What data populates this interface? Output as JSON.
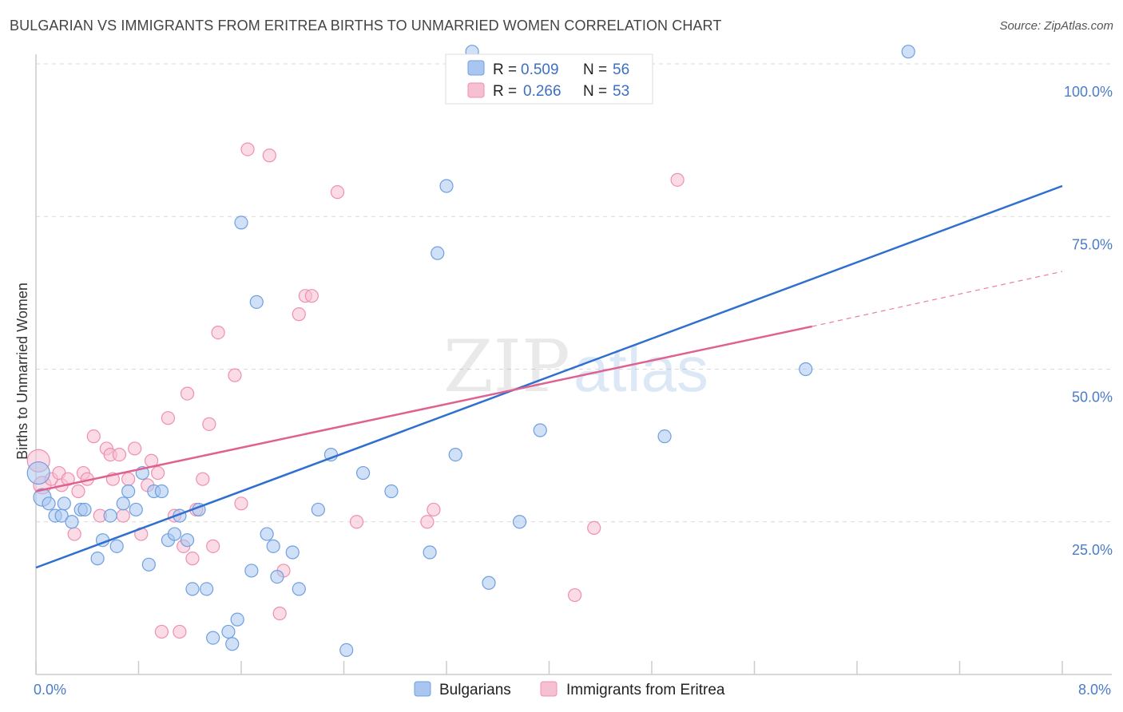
{
  "title": "BULGARIAN VS IMMIGRANTS FROM ERITREA BIRTHS TO UNMARRIED WOMEN CORRELATION CHART",
  "source": "Source: ZipAtlas.com",
  "watermark": {
    "zip": "ZIP",
    "atlas": "atlas"
  },
  "chart_data": {
    "type": "scatter",
    "title": "BULGARIAN VS IMMIGRANTS FROM ERITREA BIRTHS TO UNMARRIED WOMEN CORRELATION CHART",
    "xlabel": "",
    "ylabel": "Births to Unmarried Women",
    "xlim": [
      0,
      8
    ],
    "ylim": [
      0,
      100
    ],
    "x_tick_labels": {
      "left": "0.0%",
      "right": "8.0%"
    },
    "y_ticks": [
      {
        "value": 25,
        "label": "25.0%"
      },
      {
        "value": 50,
        "label": "50.0%"
      },
      {
        "value": 75,
        "label": "75.0%"
      },
      {
        "value": 100,
        "label": "100.0%"
      }
    ],
    "legend": {
      "entries": [
        {
          "r_label": "R =",
          "r_value": "0.509",
          "n_label": "N =",
          "n_value": "56"
        },
        {
          "r_label": "R =",
          "r_value": "0.266",
          "n_label": "N =",
          "n_value": "53"
        }
      ]
    },
    "series": [
      {
        "name": "Bulgarians",
        "color": "#6f9fe0",
        "fill": "#a9c6f0",
        "trend": {
          "x0": 0,
          "y0": 17.5,
          "x1": 8,
          "y1": 80
        },
        "points": [
          [
            0.02,
            33
          ],
          [
            0.05,
            29
          ],
          [
            0.1,
            28
          ],
          [
            0.15,
            26
          ],
          [
            0.2,
            26
          ],
          [
            0.22,
            28
          ],
          [
            0.28,
            25
          ],
          [
            0.35,
            27
          ],
          [
            0.38,
            27
          ],
          [
            0.48,
            19
          ],
          [
            0.52,
            22
          ],
          [
            0.58,
            26
          ],
          [
            0.63,
            21
          ],
          [
            0.68,
            28
          ],
          [
            0.72,
            30
          ],
          [
            0.78,
            27
          ],
          [
            0.83,
            33
          ],
          [
            0.88,
            18
          ],
          [
            0.92,
            30
          ],
          [
            0.98,
            30
          ],
          [
            1.03,
            22
          ],
          [
            1.08,
            23
          ],
          [
            1.12,
            26
          ],
          [
            1.18,
            22
          ],
          [
            1.22,
            14
          ],
          [
            1.27,
            27
          ],
          [
            1.33,
            14
          ],
          [
            1.38,
            6
          ],
          [
            1.5,
            7
          ],
          [
            1.53,
            5
          ],
          [
            1.57,
            9
          ],
          [
            1.6,
            74
          ],
          [
            1.68,
            17
          ],
          [
            1.72,
            61
          ],
          [
            1.8,
            23
          ],
          [
            1.85,
            21
          ],
          [
            1.88,
            16
          ],
          [
            2.0,
            20
          ],
          [
            2.05,
            14
          ],
          [
            2.2,
            27
          ],
          [
            2.3,
            36
          ],
          [
            2.42,
            4
          ],
          [
            2.55,
            33
          ],
          [
            2.77,
            30
          ],
          [
            3.07,
            20
          ],
          [
            3.13,
            69
          ],
          [
            3.2,
            80
          ],
          [
            3.27,
            36
          ],
          [
            3.4,
            102
          ],
          [
            3.53,
            15
          ],
          [
            3.77,
            25
          ],
          [
            3.93,
            40
          ],
          [
            4.9,
            39
          ],
          [
            6.0,
            50
          ],
          [
            6.8,
            102
          ]
        ]
      },
      {
        "name": "Immigrants from Eritrea",
        "color": "#ef8fb0",
        "fill": "#f7bfd2",
        "trend": {
          "x0": 0,
          "y0": 30,
          "x1": 6.05,
          "y1": 57
        },
        "trend_dashed": {
          "x0": 6.05,
          "y0": 57,
          "x1": 8,
          "y1": 66
        },
        "points": [
          [
            0.02,
            35
          ],
          [
            0.05,
            31
          ],
          [
            0.12,
            32
          ],
          [
            0.18,
            33
          ],
          [
            0.2,
            31
          ],
          [
            0.25,
            32
          ],
          [
            0.3,
            23
          ],
          [
            0.33,
            30
          ],
          [
            0.37,
            33
          ],
          [
            0.4,
            32
          ],
          [
            0.45,
            39
          ],
          [
            0.5,
            26
          ],
          [
            0.55,
            37
          ],
          [
            0.58,
            36
          ],
          [
            0.6,
            32
          ],
          [
            0.65,
            36
          ],
          [
            0.68,
            26
          ],
          [
            0.72,
            32
          ],
          [
            0.77,
            37
          ],
          [
            0.82,
            23
          ],
          [
            0.87,
            31
          ],
          [
            0.9,
            35
          ],
          [
            0.95,
            33
          ],
          [
            0.98,
            7
          ],
          [
            1.03,
            42
          ],
          [
            1.08,
            26
          ],
          [
            1.12,
            7
          ],
          [
            1.15,
            21
          ],
          [
            1.18,
            46
          ],
          [
            1.22,
            19
          ],
          [
            1.25,
            27
          ],
          [
            1.3,
            32
          ],
          [
            1.35,
            41
          ],
          [
            1.38,
            21
          ],
          [
            1.42,
            56
          ],
          [
            1.55,
            49
          ],
          [
            1.6,
            28
          ],
          [
            1.65,
            86
          ],
          [
            1.82,
            85
          ],
          [
            1.9,
            10
          ],
          [
            1.93,
            17
          ],
          [
            2.05,
            59
          ],
          [
            2.1,
            62
          ],
          [
            2.15,
            62
          ],
          [
            2.35,
            79
          ],
          [
            2.5,
            25
          ],
          [
            3.05,
            25
          ],
          [
            3.1,
            27
          ],
          [
            4.2,
            13
          ],
          [
            4.35,
            24
          ],
          [
            5.0,
            81
          ]
        ]
      }
    ]
  },
  "bottom_legend": [
    {
      "label": "Bulgarians",
      "color": "#a9c6f0",
      "stroke": "#6f9fe0"
    },
    {
      "label": "Immigrants from Eritrea",
      "color": "#f7bfd2",
      "stroke": "#ef8fb0"
    }
  ],
  "colors": {
    "blue_line": "#2f6fcf",
    "pink_line": "#e0608f",
    "grid": "#d9d9d9",
    "tick_text": "#4a7cc7"
  }
}
